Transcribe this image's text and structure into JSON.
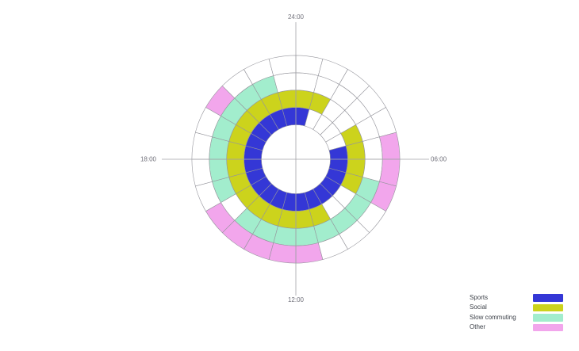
{
  "chart_data": {
    "type": "polar-heatmap",
    "hours": 24,
    "clockwise_from_top": true,
    "axis_labels": {
      "top": "24:00",
      "right": "06:00",
      "bottom": "12:00",
      "left": "18:00"
    },
    "rings_inner_to_outer": [
      "Sports",
      "Social",
      "Slow commuting",
      "Other"
    ],
    "series": [
      {
        "name": "Sports",
        "color": "#3437d6",
        "active_hours": [
          0,
          5,
          6,
          7,
          8,
          9,
          10,
          11,
          12,
          13,
          14,
          15,
          16,
          17,
          18,
          19,
          20,
          21,
          22,
          23
        ]
      },
      {
        "name": "Social",
        "color": "#ccd31c",
        "active_hours": [
          0,
          1,
          4,
          5,
          6,
          7,
          10,
          11,
          12,
          13,
          14,
          15,
          16,
          17,
          18,
          19,
          20,
          21,
          22,
          23
        ]
      },
      {
        "name": "Slow commuting",
        "color": "#a2edcd",
        "active_hours": [
          7,
          8,
          9,
          10,
          11,
          12,
          13,
          14,
          16,
          17,
          18,
          19,
          20,
          21,
          22
        ]
      },
      {
        "name": "Other",
        "color": "#f2a6ec",
        "active_hours": [
          5,
          6,
          7,
          11,
          12,
          13,
          14,
          15,
          20
        ]
      }
    ],
    "inactive_color": "#ffffff",
    "grid_color": "#95959c",
    "axis_line_color": "#a3a3a8",
    "tick_label_color": "#70707a",
    "legend_position": "bottom-right",
    "grid": true
  }
}
